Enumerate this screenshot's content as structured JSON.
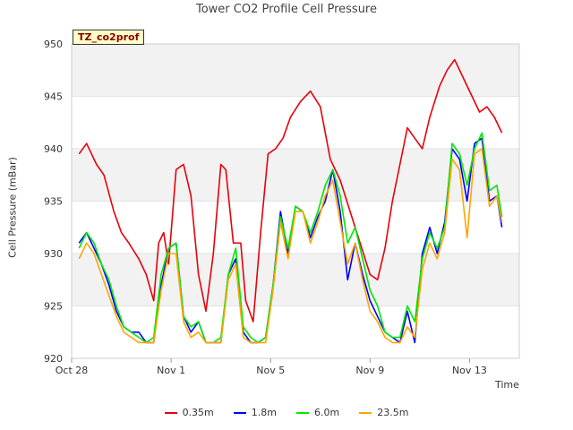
{
  "chart_data": {
    "type": "line",
    "title": "Tower CO2 Profile Cell Pressure",
    "xlabel": "Time",
    "ylabel": "Cell Pressure (mBar)",
    "tag": "TZ_co2prof",
    "ylim": [
      920,
      950
    ],
    "yticks": [
      920,
      925,
      930,
      935,
      940,
      945,
      950
    ],
    "xlim": [
      0,
      18
    ],
    "xticks": [
      {
        "label": "Oct 28",
        "x": 0
      },
      {
        "label": "Nov 1",
        "x": 4
      },
      {
        "label": "Nov 5",
        "x": 8
      },
      {
        "label": "Nov 9",
        "x": 12
      },
      {
        "label": "Nov 13",
        "x": 16
      }
    ],
    "x_unit": "days since Oct 28",
    "grid": true,
    "legend_placement": "bottom",
    "series": [
      {
        "name": "0.35m",
        "color": "#e8000b",
        "x": [
          0.3,
          0.6,
          1.0,
          1.3,
          1.7,
          2.0,
          2.3,
          2.7,
          3.0,
          3.3,
          3.5,
          3.7,
          3.9,
          4.2,
          4.5,
          4.8,
          5.1,
          5.4,
          5.7,
          6.0,
          6.2,
          6.5,
          6.8,
          7.0,
          7.3,
          7.6,
          7.9,
          8.2,
          8.5,
          8.8,
          9.2,
          9.6,
          10.0,
          10.4,
          10.8,
          11.2,
          11.6,
          12.0,
          12.3,
          12.6,
          12.9,
          13.2,
          13.5,
          13.8,
          14.1,
          14.4,
          14.8,
          15.1,
          15.4,
          15.7,
          16.1,
          16.4,
          16.7,
          17.0,
          17.3
        ],
        "values": [
          939.5,
          940.5,
          938.5,
          937.5,
          934,
          932,
          931,
          929.5,
          928,
          925.5,
          931,
          932,
          929,
          938,
          938.5,
          935.5,
          928,
          924.5,
          930,
          938.5,
          938,
          931,
          931,
          925.5,
          923.5,
          932,
          939.5,
          940,
          941,
          943,
          944.5,
          945.5,
          944,
          939,
          937,
          934,
          931,
          928,
          927.5,
          930.5,
          935,
          938.5,
          942,
          941,
          940,
          943,
          946,
          947.5,
          948.5,
          947,
          945,
          943.5,
          944,
          943,
          941.5
        ]
      },
      {
        "name": "1.8m",
        "color": "#0000ff",
        "x": [
          0.3,
          0.6,
          0.9,
          1.2,
          1.5,
          1.8,
          2.1,
          2.4,
          2.7,
          3.0,
          3.3,
          3.6,
          3.9,
          4.2,
          4.5,
          4.8,
          5.1,
          5.4,
          5.7,
          6.0,
          6.3,
          6.6,
          6.9,
          7.2,
          7.5,
          7.8,
          8.1,
          8.4,
          8.7,
          9.0,
          9.3,
          9.6,
          9.9,
          10.2,
          10.5,
          10.8,
          11.1,
          11.4,
          11.7,
          12.0,
          12.3,
          12.6,
          12.9,
          13.2,
          13.5,
          13.8,
          14.1,
          14.4,
          14.7,
          15.0,
          15.3,
          15.6,
          15.9,
          16.2,
          16.5,
          16.8,
          17.1,
          17.3
        ],
        "values": [
          931,
          932,
          930.5,
          929,
          927,
          924.5,
          923,
          922.5,
          922.5,
          921.5,
          921.5,
          927,
          930.5,
          931,
          924,
          922.5,
          923.5,
          921.5,
          921.5,
          921.5,
          928,
          929.5,
          922.5,
          921.5,
          921.5,
          922,
          927,
          934,
          930,
          934.5,
          934,
          931.5,
          933.5,
          935,
          938,
          934,
          927.5,
          931,
          928,
          925.5,
          924,
          922.5,
          922,
          921.5,
          924.5,
          921.5,
          930,
          932.5,
          930,
          933,
          940,
          939,
          935,
          940.5,
          941,
          935,
          935.5,
          932.5
        ]
      },
      {
        "name": "6.0m",
        "color": "#00e800",
        "x": [
          0.3,
          0.6,
          0.9,
          1.2,
          1.5,
          1.8,
          2.1,
          2.4,
          2.7,
          3.0,
          3.3,
          3.6,
          3.9,
          4.2,
          4.5,
          4.8,
          5.1,
          5.4,
          5.7,
          6.0,
          6.3,
          6.6,
          6.9,
          7.2,
          7.5,
          7.8,
          8.1,
          8.4,
          8.7,
          9.0,
          9.3,
          9.6,
          9.9,
          10.2,
          10.5,
          10.8,
          11.1,
          11.4,
          11.7,
          12.0,
          12.3,
          12.6,
          12.9,
          13.2,
          13.5,
          13.8,
          14.1,
          14.4,
          14.7,
          15.0,
          15.3,
          15.6,
          15.9,
          16.2,
          16.5,
          16.8,
          17.1,
          17.3
        ],
        "values": [
          930.5,
          932,
          931,
          929,
          927.5,
          925,
          923,
          922.5,
          922,
          921.5,
          922,
          928,
          930.5,
          931,
          924,
          923,
          923.5,
          921.5,
          921.5,
          922,
          928,
          930.5,
          923,
          922,
          921.5,
          922,
          927,
          933.5,
          930.5,
          934.5,
          934,
          932,
          934,
          936.5,
          938,
          935.5,
          931,
          932.5,
          929.5,
          926.5,
          925,
          922.5,
          922,
          922,
          925,
          923.5,
          929.5,
          932,
          930.5,
          932.5,
          940.5,
          939.5,
          936.5,
          940,
          941.5,
          936,
          936.5,
          933.5
        ]
      },
      {
        "name": "23.5m",
        "color": "#ffa500",
        "x": [
          0.3,
          0.6,
          0.9,
          1.2,
          1.5,
          1.8,
          2.1,
          2.4,
          2.7,
          3.0,
          3.3,
          3.6,
          3.9,
          4.2,
          4.5,
          4.8,
          5.1,
          5.4,
          5.7,
          6.0,
          6.3,
          6.6,
          6.9,
          7.2,
          7.5,
          7.8,
          8.1,
          8.4,
          8.7,
          9.0,
          9.3,
          9.6,
          9.9,
          10.2,
          10.5,
          10.8,
          11.1,
          11.4,
          11.7,
          12.0,
          12.3,
          12.6,
          12.9,
          13.2,
          13.5,
          13.8,
          14.1,
          14.4,
          14.7,
          15.0,
          15.3,
          15.6,
          15.9,
          16.2,
          16.5,
          16.8,
          17.1,
          17.3
        ],
        "values": [
          929.5,
          931,
          930,
          928,
          926,
          924,
          922.5,
          922,
          921.5,
          921.5,
          921.5,
          926.5,
          930,
          930,
          923.5,
          922,
          922.5,
          921.5,
          921.5,
          921.5,
          927.5,
          929,
          922,
          921.5,
          921.5,
          921.5,
          926.5,
          933,
          929.5,
          934,
          934,
          931,
          933,
          935.5,
          937,
          933,
          929,
          931,
          927.5,
          924.5,
          923.5,
          922,
          921.5,
          921.5,
          923,
          922,
          928.5,
          931,
          929.5,
          932,
          939,
          938,
          931.5,
          939.5,
          940,
          934.5,
          935.5,
          933
        ]
      }
    ]
  }
}
